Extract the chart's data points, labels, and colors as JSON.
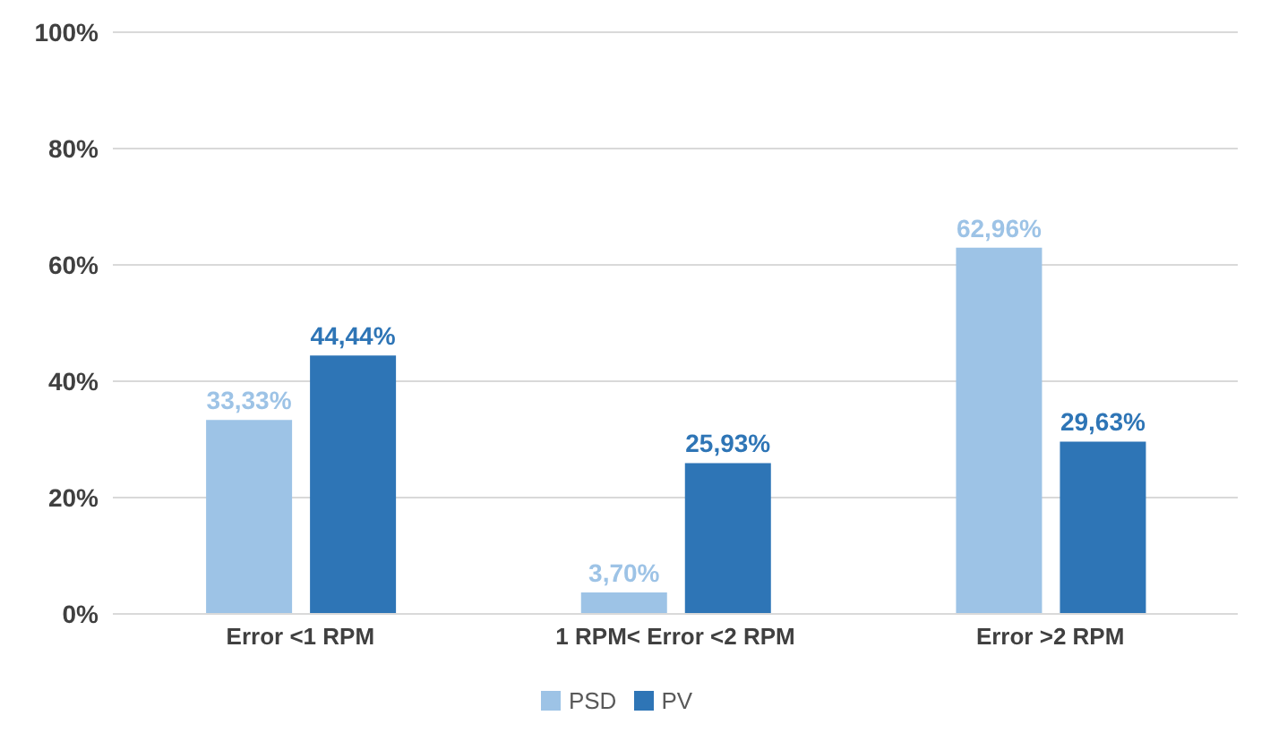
{
  "chart_data": {
    "type": "bar",
    "categories": [
      "Error <1 RPM",
      "1 RPM< Error <2 RPM",
      "Error >2 RPM"
    ],
    "series": [
      {
        "name": "PSD",
        "color": "#9dc3e6",
        "values": [
          33.33,
          3.7,
          62.96
        ],
        "value_labels": [
          "33,33%",
          "3,70%",
          "62,96%"
        ]
      },
      {
        "name": "PV",
        "color": "#2e75b6",
        "values": [
          44.44,
          25.93,
          29.63
        ],
        "value_labels": [
          "44,44%",
          "25,93%",
          "29,63%"
        ]
      }
    ],
    "ylim": [
      0,
      100
    ],
    "yticks": [
      {
        "value": 0,
        "label": "0%"
      },
      {
        "value": 20,
        "label": "20%"
      },
      {
        "value": 40,
        "label": "40%"
      },
      {
        "value": 60,
        "label": "60%"
      },
      {
        "value": 80,
        "label": "80%"
      },
      {
        "value": 100,
        "label": "100%"
      }
    ],
    "grid": "y",
    "legend": "bottom"
  }
}
